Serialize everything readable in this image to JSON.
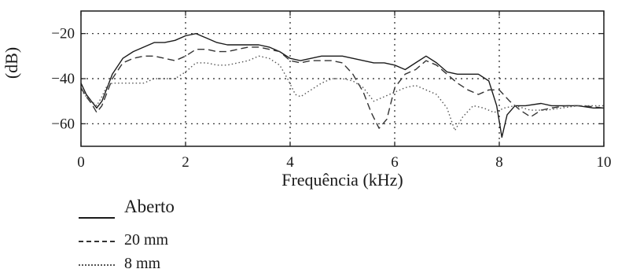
{
  "chart_data": {
    "type": "line",
    "xlabel": "Frequência (kHz)",
    "ylabel": "(dB)",
    "xlim": [
      0,
      10
    ],
    "ylim": [
      -70,
      -10
    ],
    "xticks": [
      0,
      2,
      4,
      6,
      8,
      10
    ],
    "yticks": [
      -20,
      -40,
      -60
    ],
    "grid": true,
    "legend_position": "below-left",
    "series": [
      {
        "name": "Aberto",
        "style": "solid",
        "color": "#1a1a1a",
        "x": [
          0,
          0.1,
          0.2,
          0.3,
          0.4,
          0.5,
          0.6,
          0.8,
          1.0,
          1.2,
          1.4,
          1.6,
          1.8,
          2.0,
          2.2,
          2.4,
          2.6,
          2.8,
          3.0,
          3.2,
          3.4,
          3.6,
          3.8,
          4.0,
          4.2,
          4.4,
          4.6,
          4.8,
          5.0,
          5.2,
          5.4,
          5.6,
          5.8,
          6.0,
          6.2,
          6.4,
          6.6,
          6.8,
          7.0,
          7.2,
          7.4,
          7.6,
          7.8,
          7.95,
          8.05,
          8.15,
          8.3,
          8.5,
          8.8,
          9.0,
          9.2,
          9.5,
          9.8,
          10.0
        ],
        "y": [
          -42,
          -47,
          -50,
          -53,
          -50,
          -44,
          -38,
          -31,
          -28,
          -26,
          -24,
          -24,
          -23,
          -21,
          -20,
          -22,
          -24,
          -25,
          -25,
          -25,
          -25,
          -26,
          -28,
          -31,
          -32,
          -31,
          -30,
          -30,
          -30,
          -31,
          -32,
          -33,
          -33,
          -34,
          -36,
          -33,
          -30,
          -33,
          -37,
          -38,
          -38,
          -38,
          -41,
          -52,
          -66,
          -56,
          -52,
          -52,
          -51,
          -52,
          -52,
          -52,
          -53,
          -53
        ]
      },
      {
        "name": "20 mm",
        "style": "dashed",
        "color": "#333333",
        "x": [
          0,
          0.1,
          0.2,
          0.3,
          0.4,
          0.5,
          0.6,
          0.8,
          1.0,
          1.2,
          1.4,
          1.6,
          1.8,
          2.0,
          2.2,
          2.4,
          2.6,
          2.8,
          3.0,
          3.2,
          3.4,
          3.6,
          3.8,
          4.0,
          4.2,
          4.4,
          4.6,
          4.8,
          5.0,
          5.2,
          5.4,
          5.55,
          5.7,
          5.85,
          6.0,
          6.2,
          6.4,
          6.6,
          6.8,
          7.0,
          7.2,
          7.4,
          7.6,
          7.8,
          8.0,
          8.2,
          8.4,
          8.6,
          8.8,
          9.0,
          9.3,
          9.6,
          10.0
        ],
        "y": [
          -44,
          -48,
          -51,
          -55,
          -52,
          -46,
          -40,
          -33,
          -31,
          -30,
          -30,
          -31,
          -32,
          -30,
          -27,
          -27,
          -28,
          -28,
          -27,
          -26,
          -26,
          -27,
          -28,
          -32,
          -33,
          -32,
          -32,
          -32,
          -33,
          -38,
          -46,
          -55,
          -62,
          -58,
          -44,
          -38,
          -36,
          -32,
          -34,
          -38,
          -42,
          -45,
          -47,
          -45,
          -45,
          -50,
          -54,
          -57,
          -54,
          -53,
          -52,
          -52,
          -53
        ]
      },
      {
        "name": "8 mm",
        "style": "dotted",
        "color": "#555555",
        "x": [
          0,
          0.1,
          0.2,
          0.3,
          0.4,
          0.5,
          0.6,
          0.8,
          1.0,
          1.2,
          1.4,
          1.6,
          1.8,
          2.0,
          2.2,
          2.4,
          2.6,
          2.8,
          3.0,
          3.2,
          3.4,
          3.6,
          3.8,
          3.95,
          4.1,
          4.2,
          4.4,
          4.6,
          4.8,
          5.0,
          5.2,
          5.4,
          5.6,
          5.8,
          6.0,
          6.2,
          6.4,
          6.6,
          6.8,
          7.0,
          7.15,
          7.3,
          7.5,
          7.7,
          7.9,
          8.1,
          8.3,
          8.6,
          8.9,
          9.2,
          9.5,
          10.0
        ],
        "y": [
          -45,
          -48,
          -50,
          -52,
          -48,
          -43,
          -42,
          -42,
          -42,
          -42,
          -40,
          -40,
          -40,
          -37,
          -33,
          -33,
          -34,
          -34,
          -33,
          -32,
          -30,
          -31,
          -34,
          -40,
          -47,
          -48,
          -45,
          -42,
          -40,
          -40,
          -41,
          -44,
          -50,
          -48,
          -46,
          -44,
          -43,
          -45,
          -47,
          -53,
          -63,
          -57,
          -52,
          -53,
          -55,
          -53,
          -52,
          -54,
          -54,
          -53,
          -52,
          -52
        ]
      }
    ]
  }
}
